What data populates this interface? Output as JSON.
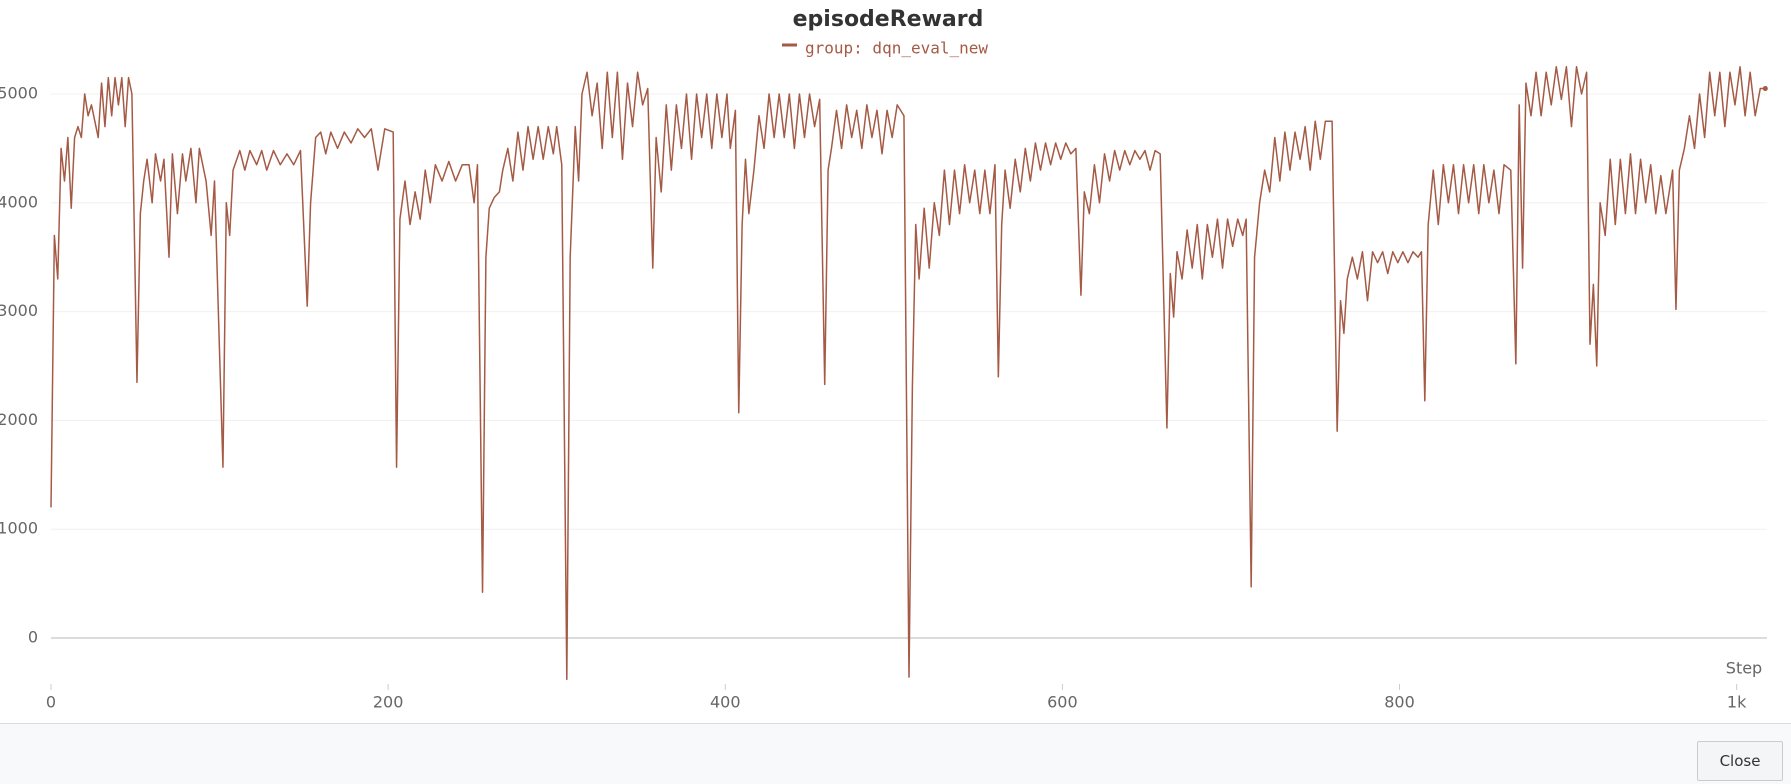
{
  "chart_data": {
    "type": "line",
    "title": "episodeReward",
    "xlabel": "Step",
    "xlim": [
      0,
      1018
    ],
    "ylim": [
      -400,
      5300
    ],
    "xticks": [
      0,
      200,
      400,
      600,
      800,
      {
        "value": 1000,
        "label": "1k"
      }
    ],
    "yticks": [
      0,
      1000,
      2000,
      3000,
      4000,
      5000
    ],
    "grid": true,
    "x": [
      0,
      2,
      4,
      6,
      8,
      10,
      12,
      14,
      16,
      18,
      20,
      22,
      24,
      26,
      28,
      30,
      32,
      34,
      36,
      38,
      40,
      42,
      44,
      46,
      48,
      51,
      53,
      55,
      57,
      60,
      62,
      65,
      67,
      70,
      72,
      75,
      78,
      80,
      83,
      86,
      88,
      92,
      95,
      97,
      102,
      104,
      106,
      108,
      112,
      115,
      118,
      122,
      125,
      128,
      132,
      136,
      140,
      144,
      148,
      152,
      154,
      157,
      160,
      163,
      166,
      170,
      174,
      178,
      182,
      186,
      190,
      194,
      198,
      203,
      205,
      207,
      210,
      213,
      216,
      219,
      222,
      225,
      228,
      232,
      236,
      240,
      244,
      248,
      251,
      253,
      256,
      258,
      260,
      263,
      266,
      268,
      271,
      274,
      277,
      280,
      283,
      286,
      289,
      292,
      295,
      298,
      300,
      303,
      306,
      308,
      311,
      313,
      315,
      318,
      321,
      324,
      327,
      330,
      333,
      336,
      339,
      342,
      345,
      348,
      351,
      354,
      357,
      359,
      362,
      365,
      368,
      371,
      374,
      377,
      380,
      383,
      386,
      389,
      392,
      395,
      398,
      401,
      403,
      406,
      408,
      410,
      412,
      414,
      417,
      420,
      423,
      426,
      429,
      432,
      435,
      438,
      441,
      444,
      447,
      450,
      453,
      456,
      459,
      461,
      463,
      466,
      469,
      472,
      475,
      478,
      481,
      484,
      487,
      490,
      493,
      496,
      499,
      502,
      506,
      509,
      511,
      513,
      515,
      518,
      521,
      524,
      527,
      530,
      533,
      536,
      539,
      542,
      545,
      548,
      551,
      554,
      557,
      560,
      562,
      564,
      566,
      569,
      572,
      575,
      578,
      581,
      584,
      587,
      590,
      593,
      596,
      599,
      602,
      605,
      608,
      611,
      613,
      616,
      619,
      622,
      625,
      628,
      631,
      634,
      637,
      640,
      643,
      646,
      649,
      652,
      655,
      658,
      662,
      664,
      666,
      668,
      671,
      674,
      677,
      680,
      683,
      686,
      689,
      692,
      695,
      698,
      701,
      704,
      707,
      709,
      712,
      714,
      717,
      720,
      723,
      726,
      729,
      732,
      735,
      738,
      741,
      744,
      747,
      750,
      753,
      756,
      760,
      763,
      765,
      767,
      769,
      772,
      775,
      778,
      781,
      784,
      787,
      790,
      793,
      796,
      799,
      802,
      805,
      808,
      811,
      813,
      815,
      817,
      820,
      823,
      826,
      829,
      832,
      835,
      838,
      841,
      844,
      847,
      850,
      853,
      856,
      859,
      862,
      866,
      869,
      871,
      873,
      875,
      878,
      881,
      884,
      887,
      890,
      893,
      896,
      899,
      902,
      905,
      908,
      911,
      913,
      915,
      917,
      919,
      922,
      925,
      928,
      931,
      934,
      937,
      940,
      943,
      946,
      949,
      952,
      955,
      958,
      962,
      964,
      966,
      969,
      972,
      975,
      978,
      981,
      984,
      987,
      990,
      993,
      996,
      999,
      1002,
      1005,
      1008,
      1011,
      1014,
      1017
    ],
    "series": [
      {
        "name": "group: dqn_eval_new",
        "color": "#a55a45",
        "values": [
          1200,
          3700,
          3300,
          4500,
          4200,
          4600,
          3950,
          4600,
          4700,
          4600,
          5000,
          4800,
          4900,
          4750,
          4600,
          5100,
          4700,
          5150,
          4800,
          5150,
          4900,
          5150,
          4700,
          5150,
          5000,
          2350,
          3900,
          4200,
          4400,
          4000,
          4450,
          4200,
          4400,
          3500,
          4450,
          3900,
          4450,
          4200,
          4500,
          4000,
          4500,
          4200,
          3700,
          4200,
          1570,
          4000,
          3700,
          4300,
          4480,
          4300,
          4480,
          4350,
          4480,
          4300,
          4480,
          4350,
          4450,
          4350,
          4480,
          3050,
          4000,
          4600,
          4650,
          4450,
          4650,
          4500,
          4650,
          4550,
          4680,
          4600,
          4680,
          4300,
          4680,
          4650,
          1570,
          3850,
          4200,
          3800,
          4100,
          3850,
          4300,
          4000,
          4350,
          4200,
          4380,
          4200,
          4350,
          4350,
          4000,
          4350,
          420,
          3500,
          3950,
          4050,
          4100,
          4300,
          4500,
          4200,
          4650,
          4300,
          4700,
          4400,
          4700,
          4400,
          4700,
          4450,
          4700,
          4350,
          -380,
          3500,
          4700,
          4200,
          5000,
          5200,
          4800,
          5100,
          4500,
          5200,
          4600,
          5200,
          4400,
          5100,
          4700,
          5200,
          4900,
          5050,
          3400,
          4600,
          4100,
          4900,
          4300,
          4900,
          4500,
          5000,
          4400,
          5000,
          4600,
          5000,
          4500,
          5000,
          4600,
          5000,
          4500,
          4850,
          2070,
          3800,
          4400,
          3900,
          4300,
          4800,
          4500,
          5000,
          4600,
          5000,
          4600,
          5000,
          4500,
          5000,
          4600,
          5000,
          4700,
          4950,
          2330,
          4300,
          4500,
          4850,
          4500,
          4900,
          4600,
          4850,
          4500,
          4900,
          4600,
          4850,
          4450,
          4850,
          4600,
          4900,
          4800,
          -360,
          2300,
          3800,
          3300,
          3950,
          3400,
          4000,
          3700,
          4300,
          3800,
          4300,
          3900,
          4350,
          4000,
          4300,
          3900,
          4300,
          3900,
          4350,
          2400,
          3800,
          4300,
          3950,
          4400,
          4100,
          4500,
          4200,
          4550,
          4300,
          4550,
          4350,
          4550,
          4400,
          4550,
          4450,
          4500,
          3150,
          4100,
          3900,
          4350,
          4000,
          4450,
          4200,
          4480,
          4300,
          4480,
          4350,
          4480,
          4400,
          4480,
          4300,
          4480,
          4450,
          1930,
          3350,
          2950,
          3550,
          3300,
          3750,
          3400,
          3800,
          3300,
          3800,
          3500,
          3850,
          3400,
          3850,
          3600,
          3850,
          3700,
          3850,
          470,
          3500,
          4000,
          4300,
          4100,
          4600,
          4200,
          4650,
          4300,
          4650,
          4400,
          4700,
          4300,
          4750,
          4400,
          4750,
          4750,
          1900,
          3100,
          2800,
          3300,
          3500,
          3300,
          3550,
          3100,
          3550,
          3450,
          3550,
          3350,
          3550,
          3450,
          3550,
          3450,
          3550,
          3500,
          3550,
          2180,
          3800,
          4300,
          3800,
          4350,
          4000,
          4350,
          3900,
          4350,
          4000,
          4350,
          3900,
          4350,
          4000,
          4300,
          3900,
          4350,
          4300,
          2520,
          4900,
          3400,
          5100,
          4800,
          5200,
          4800,
          5200,
          4900,
          5250,
          4950,
          5250,
          4700,
          5250,
          5000,
          5200,
          2700,
          3250,
          2500,
          4000,
          3700,
          4400,
          3800,
          4400,
          3900,
          4450,
          3900,
          4400,
          4000,
          4350,
          3900,
          4250,
          3900,
          4300,
          3020,
          4300,
          4500,
          4800,
          4500,
          5000,
          4600,
          5200,
          4800,
          5200,
          4700,
          5200,
          4900,
          5250,
          4800,
          5200,
          4800,
          5050,
          5050
        ]
      }
    ]
  },
  "footer": {
    "close_button": "Close"
  }
}
